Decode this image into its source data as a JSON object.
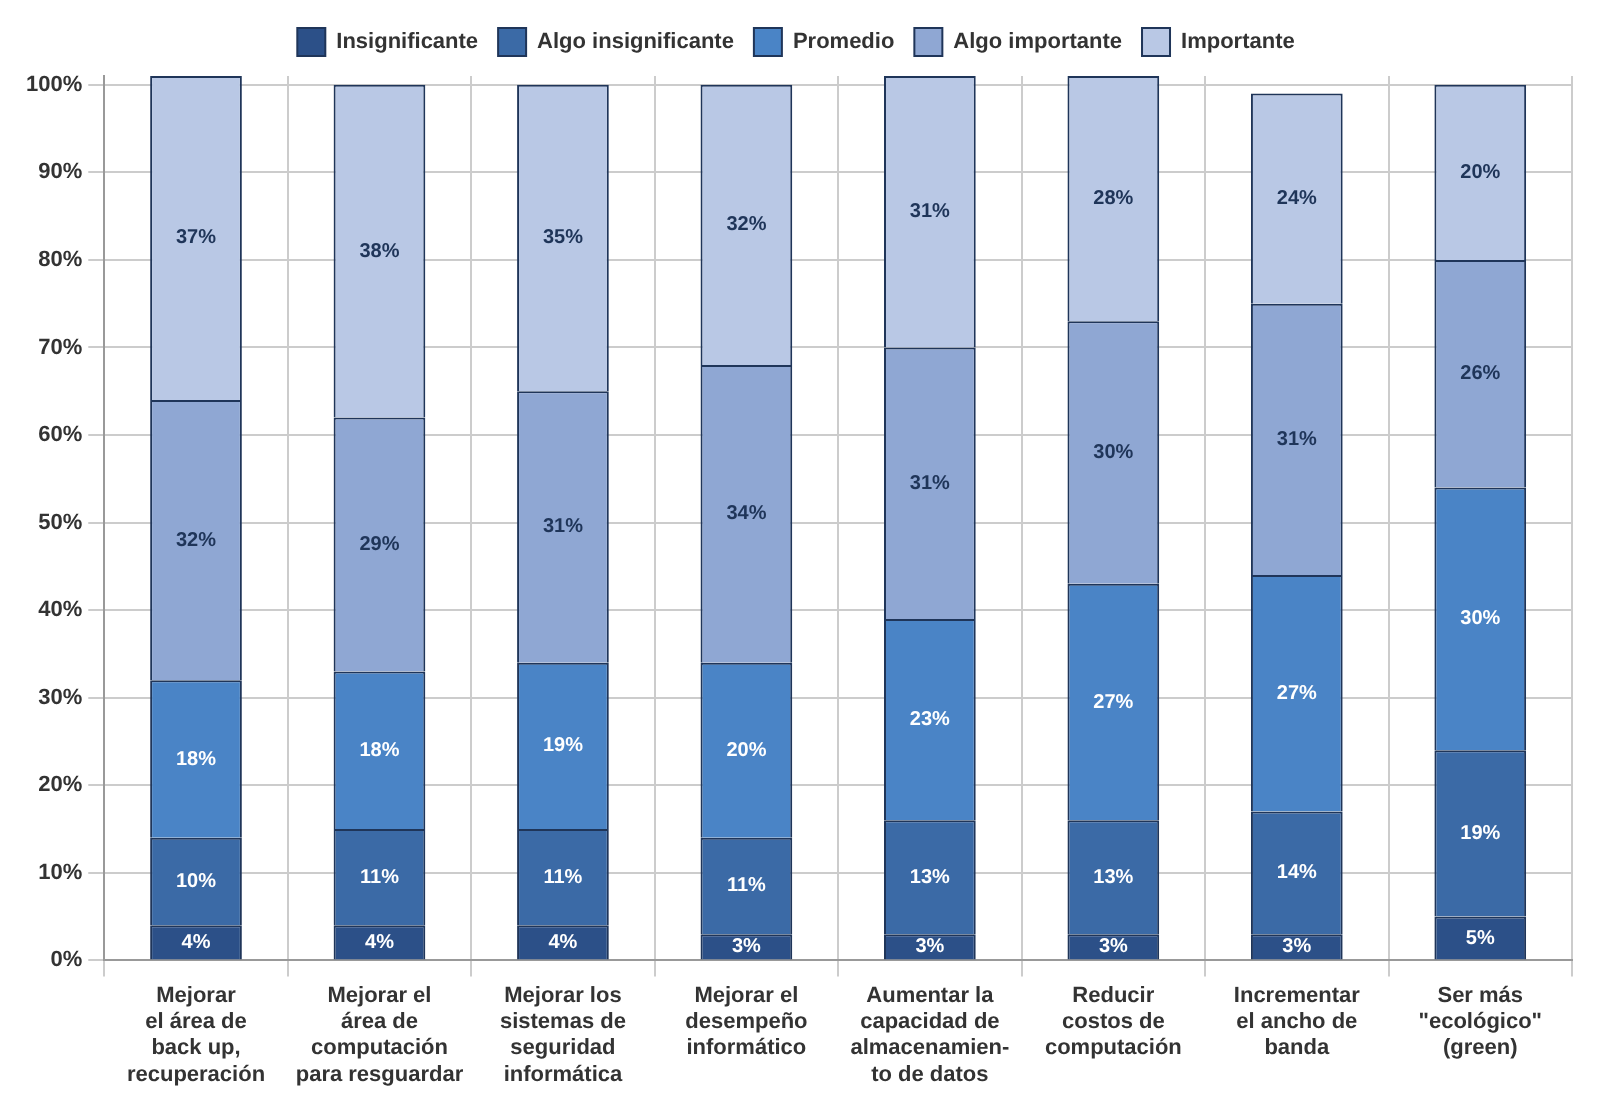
{
  "chart_data": {
    "type": "bar",
    "stacked": true,
    "grid": true,
    "legend": "top",
    "categories": [
      "Mejorar\nel área de\nback up,\nrecuperación",
      "Mejorar el\nárea de\ncomputación\npara resguardar",
      "Mejorar los\nsistemas de\nseguridad\ninformática",
      "Mejorar el\ndesempeño\ninformático",
      "Aumentar la\ncapacidad de\nalmacenamien-\nto de datos",
      "Reducir\ncostos de\ncomputación",
      "Incrementar\nel ancho de\nbanda",
      "Ser más\n\"ecológico\"\n(green)"
    ],
    "ylim": [
      0,
      101
    ],
    "yticks": [
      {
        "value": 0,
        "label": "0%"
      },
      {
        "value": 10,
        "label": "10%"
      },
      {
        "value": 20,
        "label": "20%"
      },
      {
        "value": 30,
        "label": "30%"
      },
      {
        "value": 40,
        "label": "40%"
      },
      {
        "value": 50,
        "label": "50%"
      },
      {
        "value": 60,
        "label": "60%"
      },
      {
        "value": 70,
        "label": "70%"
      },
      {
        "value": 80,
        "label": "80%"
      },
      {
        "value": 90,
        "label": "90%"
      },
      {
        "value": 100,
        "label": "100%"
      }
    ],
    "series": [
      {
        "name": "Insignificante",
        "color": "#2c5088",
        "values": [
          4,
          4,
          4,
          3,
          3,
          3,
          3,
          5
        ],
        "value_labels": [
          "4%",
          "4%",
          "4%",
          "3%",
          "3%",
          "3%",
          "3%",
          "5%"
        ]
      },
      {
        "name": "Algo insignificante",
        "color": "#3b6aa6",
        "values": [
          10,
          11,
          11,
          11,
          13,
          13,
          14,
          19
        ],
        "value_labels": [
          "10%",
          "11%",
          "11%",
          "11%",
          "13%",
          "13%",
          "14%",
          "19%"
        ]
      },
      {
        "name": "Promedio",
        "color": "#4a84c6",
        "values": [
          18,
          18,
          19,
          20,
          23,
          27,
          27,
          30
        ],
        "value_labels": [
          "18%",
          "18%",
          "19%",
          "20%",
          "23%",
          "27%",
          "27%",
          "30%"
        ]
      },
      {
        "name": "Algo importante",
        "color": "#8fa7d3",
        "values": [
          32,
          29,
          31,
          34,
          31,
          30,
          31,
          26
        ],
        "value_labels": [
          "32%",
          "29%",
          "31%",
          "34%",
          "31%",
          "30%",
          "31%",
          "26%"
        ]
      },
      {
        "name": "Importante",
        "color": "#b9c8e5",
        "values": [
          37,
          38,
          35,
          32,
          31,
          28,
          24,
          20
        ],
        "value_labels": [
          "37%",
          "38%",
          "35%",
          "32%",
          "31%",
          "28%",
          "24%",
          "20%"
        ]
      }
    ]
  }
}
